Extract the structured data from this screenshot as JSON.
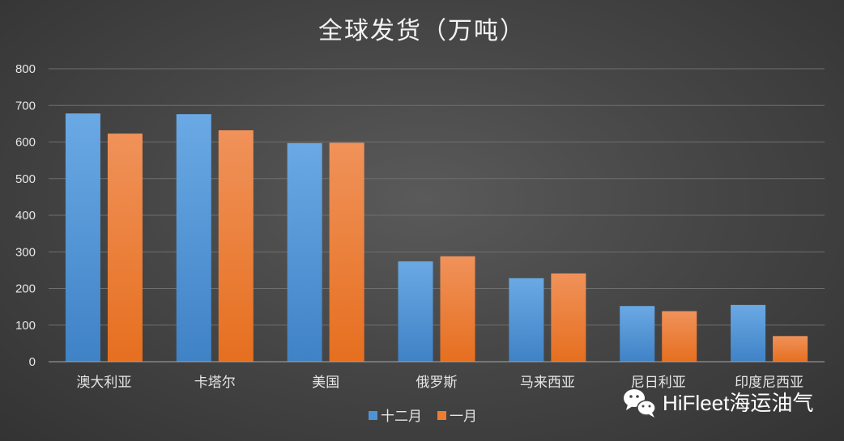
{
  "chart_data": {
    "type": "bar",
    "title": "全球发货（万吨）",
    "categories": [
      "澳大利亚",
      "卡塔尔",
      "美国",
      "俄罗斯",
      "马来西亚",
      "尼日利亚",
      "印度尼西亚"
    ],
    "series": [
      {
        "name": "十二月",
        "values": [
          678,
          676,
          597,
          274,
          228,
          152,
          155
        ],
        "color": "#4f93d6"
      },
      {
        "name": "一月",
        "values": [
          623,
          632,
          598,
          288,
          241,
          138,
          70
        ],
        "color": "#ed7d31"
      }
    ],
    "ylim": [
      0,
      800
    ],
    "yticks": [
      0,
      100,
      200,
      300,
      400,
      500,
      600,
      700,
      800
    ],
    "grid": true,
    "legend": "bottom"
  },
  "watermark": {
    "icon": "wechat-icon",
    "latin": "HiFleet",
    "cjk": "海运油气"
  }
}
